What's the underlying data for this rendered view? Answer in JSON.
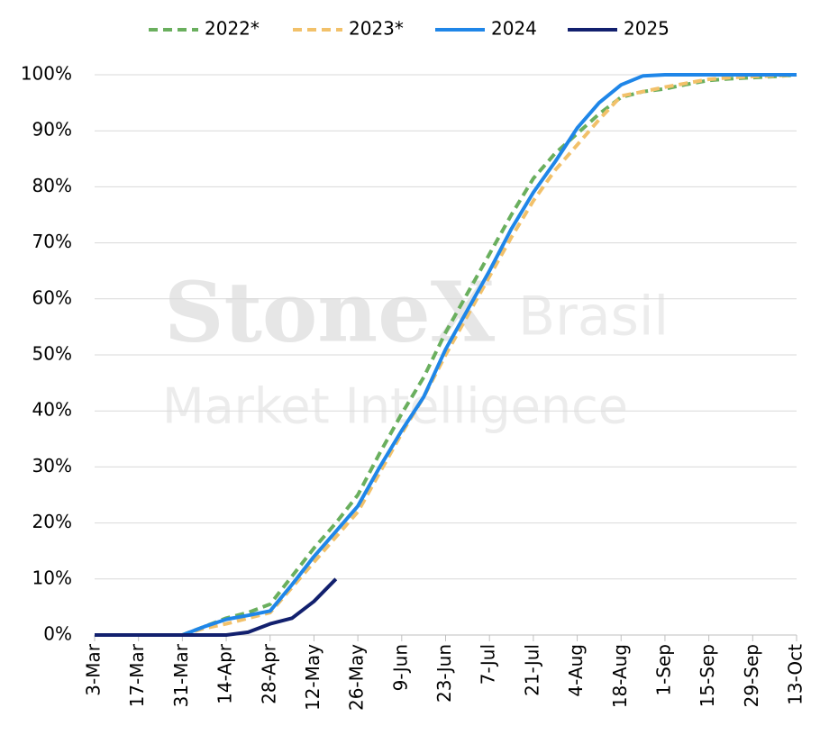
{
  "chart_data": {
    "type": "line",
    "watermark": {
      "brand": "StoneX",
      "region": "Brasil",
      "subtitle": "Market Intelligence"
    },
    "categories": [
      "3-Mar",
      null,
      "17-Mar",
      null,
      "31-Mar",
      null,
      "14-Apr",
      null,
      "28-Apr",
      null,
      "12-May",
      null,
      "26-May",
      null,
      "9-Jun",
      null,
      "23-Jun",
      null,
      "7-Jul",
      null,
      "21-Jul",
      null,
      "4-Aug",
      null,
      "18-Aug",
      null,
      "1-Sep",
      null,
      "15-Sep",
      null,
      "29-Sep",
      null,
      "13-Oct"
    ],
    "series": [
      {
        "name": "2022*",
        "color": "#6aaf5e",
        "dashed": true,
        "values": [
          0,
          0,
          0,
          0,
          0,
          1.5,
          3,
          4,
          5.5,
          10.5,
          15.5,
          20,
          25,
          32.5,
          39.5,
          46,
          54,
          61,
          68,
          75,
          81.5,
          86,
          89.5,
          93,
          96,
          97,
          97.5,
          98.3,
          99,
          99.3,
          99.5,
          99.7,
          100
        ]
      },
      {
        "name": "2023*",
        "color": "#f2c16a",
        "dashed": true,
        "values": [
          0,
          0,
          0,
          0,
          0,
          1.2,
          2,
          3,
          4,
          8.5,
          13,
          17.5,
          22,
          29,
          36,
          42.5,
          50,
          57,
          64,
          71,
          77.5,
          83,
          87.5,
          92,
          96.2,
          97,
          97.8,
          98.5,
          99.2,
          99.5,
          99.7,
          99.8,
          100
        ]
      },
      {
        "name": "2024",
        "color": "#1f86e8",
        "dashed": false,
        "values": [
          0,
          0,
          0,
          0,
          0,
          1.5,
          2.8,
          3.5,
          4.3,
          9,
          14,
          18.5,
          23,
          30,
          36.5,
          42.5,
          51,
          58,
          65,
          72.5,
          79,
          84.5,
          90.5,
          95,
          98.2,
          99.8,
          100,
          100,
          100,
          100,
          100,
          100,
          100
        ]
      },
      {
        "name": "2025",
        "color": "#12206e",
        "dashed": false,
        "values": [
          0,
          0,
          0,
          0,
          0,
          0,
          0,
          0.5,
          2,
          3,
          6,
          10,
          null,
          null,
          null,
          null,
          null,
          null,
          null,
          null,
          null,
          null,
          null,
          null,
          null,
          null,
          null,
          null,
          null,
          null,
          null,
          null,
          null
        ]
      }
    ],
    "ylim": [
      0,
      100
    ],
    "yticks": [
      {
        "value": 0,
        "label": "0%"
      },
      {
        "value": 10,
        "label": "10%"
      },
      {
        "value": 20,
        "label": "20%"
      },
      {
        "value": 30,
        "label": "30%"
      },
      {
        "value": 40,
        "label": "40%"
      },
      {
        "value": 50,
        "label": "50%"
      },
      {
        "value": 60,
        "label": "60%"
      },
      {
        "value": 70,
        "label": "70%"
      },
      {
        "value": 80,
        "label": "80%"
      },
      {
        "value": 90,
        "label": "90%"
      },
      {
        "value": 100,
        "label": "100%"
      }
    ],
    "grid": true,
    "legend": "top"
  }
}
